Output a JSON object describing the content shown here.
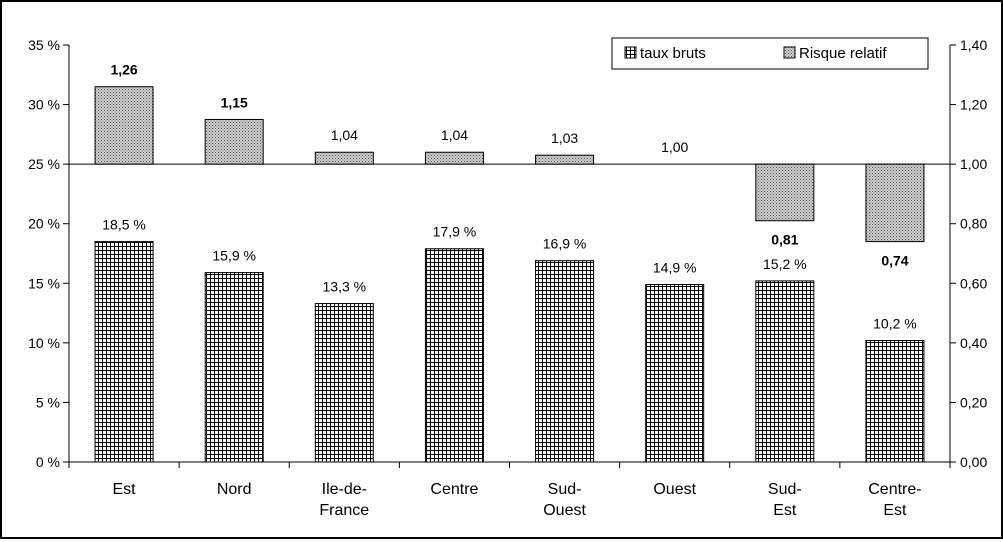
{
  "chart_data": {
    "type": "bar",
    "categories": [
      [
        "Est"
      ],
      [
        "Nord"
      ],
      [
        "Ile-de-",
        "France"
      ],
      [
        "Centre"
      ],
      [
        "Sud-",
        "Ouest"
      ],
      [
        "Ouest"
      ],
      [
        "Sud-",
        "Est"
      ],
      [
        "Centre-",
        "Est"
      ]
    ],
    "series": [
      {
        "name": "taux bruts",
        "axis": "left",
        "pattern": "grid",
        "values": [
          18.5,
          15.9,
          13.3,
          17.9,
          16.9,
          14.9,
          15.2,
          10.2
        ],
        "labels": [
          "18,5 %",
          "15,9 %",
          "13,3 %",
          "17,9 %",
          "16,9 %",
          "14,9 %",
          "15,2 %",
          "10,2 %"
        ]
      },
      {
        "name": "Risque relatif",
        "axis": "right",
        "baseline": 1.0,
        "pattern": "dense-dots",
        "values": [
          1.26,
          1.15,
          1.04,
          1.04,
          1.03,
          1.0,
          0.81,
          0.74
        ],
        "labels": [
          "1,26",
          "1,15",
          "1,04",
          "1,04",
          "1,03",
          "1,00",
          "0,81",
          "0,74"
        ],
        "bold": [
          true,
          true,
          false,
          false,
          false,
          false,
          true,
          true
        ]
      }
    ],
    "y_left": {
      "range": [
        0,
        35
      ],
      "ticks": [
        0,
        5,
        10,
        15,
        20,
        25,
        30,
        35
      ],
      "tick_labels": [
        "0 %",
        "5 %",
        "10 %",
        "15 %",
        "20 %",
        "25 %",
        "30 %",
        "35 %"
      ]
    },
    "y_right": {
      "range": [
        0,
        1.4
      ],
      "ticks": [
        0,
        0.2,
        0.4,
        0.6,
        0.8,
        1.0,
        1.2,
        1.4
      ],
      "tick_labels": [
        "0,00",
        "0,20",
        "0,40",
        "0,60",
        "0,80",
        "1,00",
        "1,20",
        "1,40"
      ]
    },
    "legend": {
      "placement": "top-right",
      "items": [
        "taux bruts",
        "Risque relatif"
      ]
    },
    "grid": false,
    "title": "",
    "xlabel": "",
    "ylabel": ""
  }
}
